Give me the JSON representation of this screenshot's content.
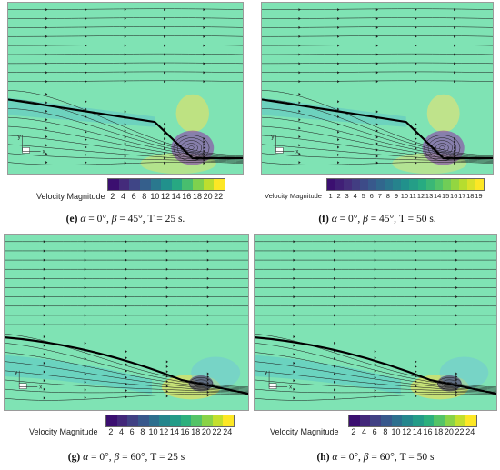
{
  "panels": [
    {
      "id": "e",
      "legend_title": "Velocity Magnitude",
      "ticks": [
        "2",
        "4",
        "6",
        "8",
        "10",
        "12",
        "14",
        "16",
        "18",
        "20",
        "22"
      ],
      "caption": {
        "letter": "(e)",
        "alpha": "α",
        "alpha_text": " = 0°, ",
        "beta": "β",
        "rest": " = 45°, T = 25 s."
      },
      "vortex": true,
      "hot_color": "#f2e25a"
    },
    {
      "id": "f",
      "legend_title": "Velocity Magnitude",
      "ticks": [
        "1",
        "2",
        "3",
        "4",
        "5",
        "6",
        "7",
        "8",
        "9",
        "10",
        "11",
        "12",
        "13",
        "14",
        "15",
        "16",
        "17",
        "18",
        "19"
      ],
      "caption": {
        "letter": "(f)",
        "alpha": "α",
        "alpha_text": " = 0°, ",
        "beta": "β",
        "rest": " = 45°, T = 50 s."
      },
      "vortex": true,
      "hot_color": "#f4e36a"
    },
    {
      "id": "g",
      "legend_title": "Velocity Magnitude",
      "ticks": [
        "2",
        "4",
        "6",
        "8",
        "10",
        "12",
        "14",
        "16",
        "18",
        "20",
        "22",
        "24"
      ],
      "caption": {
        "letter": "(g)",
        "alpha": "α",
        "alpha_text": " = 0°, ",
        "beta": "β",
        "rest": " = 60°, T = 25 s"
      },
      "vortex": false,
      "hot_color": "#f3de4e"
    },
    {
      "id": "h",
      "legend_title": "Velocity Magnitude",
      "ticks": [
        "2",
        "4",
        "6",
        "8",
        "10",
        "12",
        "14",
        "16",
        "18",
        "20",
        "22",
        "24"
      ],
      "caption": {
        "letter": "(h)",
        "alpha": "α",
        "alpha_text": " = 0°, ",
        "beta": "β",
        "rest": " = 60°, T = 50 s"
      },
      "vortex": false,
      "hot_color": "#f3de4e"
    }
  ],
  "axis_labels": {
    "y": "y",
    "x": "x"
  },
  "colors": {
    "field": "#7fe3b4",
    "streamline": "#1c1c1c",
    "palette": [
      "#3b0f70",
      "#46327e",
      "#3b528b",
      "#2c728e",
      "#21918c",
      "#28ae80",
      "#5ec962",
      "#addc30",
      "#fde725"
    ]
  }
}
